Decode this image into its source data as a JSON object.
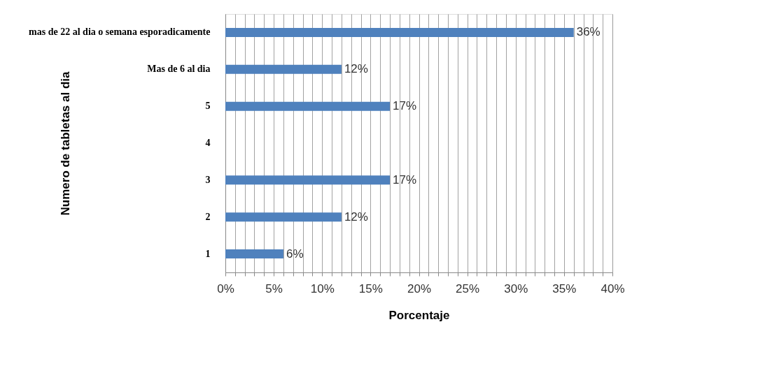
{
  "chart_data": {
    "type": "bar",
    "orientation": "horizontal",
    "xlabel": "Porcentaje",
    "ylabel": "Numero de tabletas al dia",
    "categories": [
      "mas de 22 al dia o semana esporadicamente",
      "Mas de 6 al dia",
      "5",
      "4",
      "3",
      "2",
      "1"
    ],
    "values": [
      36,
      12,
      17,
      null,
      17,
      12,
      6
    ],
    "value_labels": [
      "36%",
      "12%",
      "17%",
      null,
      "17%",
      "12%",
      "6%"
    ],
    "color": "#4f81bd",
    "xlim": [
      0,
      40
    ],
    "xticks": [
      {
        "value": 0,
        "label": "0%"
      },
      {
        "value": 1,
        "label": null
      },
      {
        "value": 2,
        "label": null
      },
      {
        "value": 3,
        "label": null
      },
      {
        "value": 4,
        "label": null
      },
      {
        "value": 5,
        "label": "5%"
      },
      {
        "value": 6,
        "label": null
      },
      {
        "value": 7,
        "label": null
      },
      {
        "value": 8,
        "label": null
      },
      {
        "value": 9,
        "label": null
      },
      {
        "value": 10,
        "label": "10%"
      },
      {
        "value": 11,
        "label": null
      },
      {
        "value": 12,
        "label": null
      },
      {
        "value": 13,
        "label": null
      },
      {
        "value": 14,
        "label": null
      },
      {
        "value": 15,
        "label": "15%"
      },
      {
        "value": 16,
        "label": null
      },
      {
        "value": 17,
        "label": null
      },
      {
        "value": 18,
        "label": null
      },
      {
        "value": 19,
        "label": null
      },
      {
        "value": 20,
        "label": "20%"
      },
      {
        "value": 21,
        "label": null
      },
      {
        "value": 22,
        "label": null
      },
      {
        "value": 23,
        "label": null
      },
      {
        "value": 24,
        "label": null
      },
      {
        "value": 25,
        "label": "25%"
      },
      {
        "value": 26,
        "label": null
      },
      {
        "value": 27,
        "label": null
      },
      {
        "value": 28,
        "label": null
      },
      {
        "value": 29,
        "label": null
      },
      {
        "value": 30,
        "label": "30%"
      },
      {
        "value": 31,
        "label": null
      },
      {
        "value": 32,
        "label": null
      },
      {
        "value": 33,
        "label": null
      },
      {
        "value": 34,
        "label": null
      },
      {
        "value": 35,
        "label": "35%"
      },
      {
        "value": 36,
        "label": null
      },
      {
        "value": 37,
        "label": null
      },
      {
        "value": 38,
        "label": null
      },
      {
        "value": 39,
        "label": null
      },
      {
        "value": 40,
        "label": "40%"
      }
    ],
    "grid": "x",
    "legend": false
  }
}
